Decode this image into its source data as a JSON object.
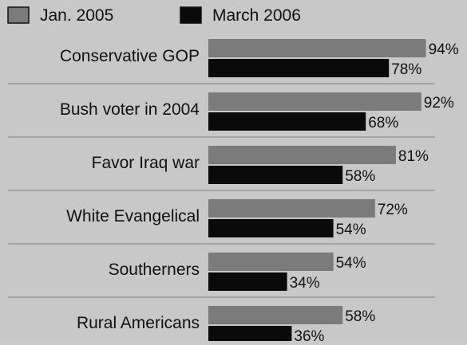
{
  "chart_data": {
    "type": "bar",
    "orientation": "horizontal",
    "categories": [
      "Conservative GOP",
      "Bush voter in 2004",
      "Favor Iraq war",
      "White Evangelical",
      "Southerners",
      "Rural Americans"
    ],
    "series": [
      {
        "name": "Jan. 2005",
        "values": [
          94,
          92,
          81,
          72,
          54,
          58
        ],
        "labels": [
          "94%",
          "92%",
          "81%",
          "72%",
          "54%",
          "58%"
        ],
        "color": "#7b7b7b"
      },
      {
        "name": "March 2006",
        "values": [
          78,
          68,
          58,
          54,
          34,
          36
        ],
        "labels": [
          "78%",
          "68%",
          "58%",
          "54%",
          "34%",
          "36%"
        ],
        "color": "#0a0a0a"
      }
    ],
    "xlim": [
      0,
      100
    ],
    "unit": "%",
    "grid": false,
    "legend_position": "top-left",
    "background": "#c8c8c8",
    "divider_color": "#8e8e8e"
  }
}
